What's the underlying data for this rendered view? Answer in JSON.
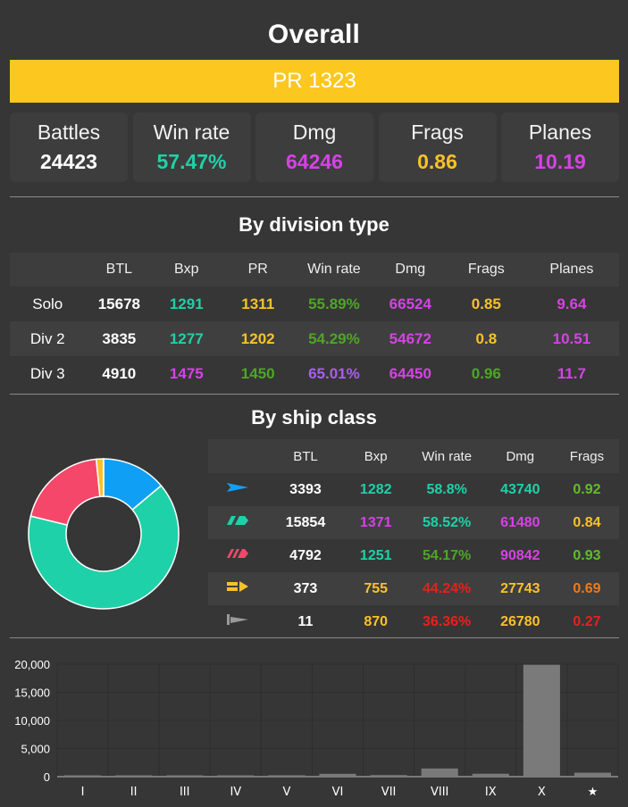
{
  "overall": {
    "title": "Overall",
    "pr_label": "PR 1323",
    "cards": [
      {
        "label": "Battles",
        "value": "24423",
        "color": "#ffffff"
      },
      {
        "label": "Win rate",
        "value": "57.47%",
        "color": "#1fd1a8"
      },
      {
        "label": "Dmg",
        "value": "64246",
        "color": "#d642e6"
      },
      {
        "label": "Frags",
        "value": "0.86",
        "color": "#fbc12a"
      },
      {
        "label": "Planes",
        "value": "10.19",
        "color": "#d642e6"
      }
    ]
  },
  "division": {
    "title": "By division type",
    "headers": [
      "",
      "BTL",
      "Bxp",
      "PR",
      "Win rate",
      "Dmg",
      "Frags",
      "Planes"
    ],
    "rows": [
      {
        "label": "Solo",
        "cells": [
          {
            "v": "15678",
            "c": "white"
          },
          {
            "v": "1291",
            "c": "teal"
          },
          {
            "v": "1311",
            "c": "yellow"
          },
          {
            "v": "55.89%",
            "c": "green"
          },
          {
            "v": "66524",
            "c": "purple"
          },
          {
            "v": "0.85",
            "c": "yellow"
          },
          {
            "v": "9.64",
            "c": "purple"
          }
        ]
      },
      {
        "label": "Div 2",
        "cells": [
          {
            "v": "3835",
            "c": "white"
          },
          {
            "v": "1277",
            "c": "teal"
          },
          {
            "v": "1202",
            "c": "yellow"
          },
          {
            "v": "54.29%",
            "c": "green"
          },
          {
            "v": "54672",
            "c": "purple"
          },
          {
            "v": "0.8",
            "c": "yellow"
          },
          {
            "v": "10.51",
            "c": "purple"
          }
        ]
      },
      {
        "label": "Div 3",
        "cells": [
          {
            "v": "4910",
            "c": "white"
          },
          {
            "v": "1475",
            "c": "purple"
          },
          {
            "v": "1450",
            "c": "green"
          },
          {
            "v": "65.01%",
            "c": "violet"
          },
          {
            "v": "64450",
            "c": "purple"
          },
          {
            "v": "0.96",
            "c": "green"
          },
          {
            "v": "11.7",
            "c": "purple"
          }
        ]
      }
    ]
  },
  "ship_class": {
    "title": "By ship class",
    "headers": [
      "",
      "BTL",
      "Bxp",
      "Win rate",
      "Dmg",
      "Frags"
    ],
    "rows": [
      {
        "icon": "destroyer-icon",
        "icon_color": "#0fa0f5",
        "cells": [
          {
            "v": "3393",
            "c": "white"
          },
          {
            "v": "1282",
            "c": "teal"
          },
          {
            "v": "58.8%",
            "c": "teal"
          },
          {
            "v": "43740",
            "c": "teal"
          },
          {
            "v": "0.92",
            "c": "lgreen"
          }
        ]
      },
      {
        "icon": "cruiser-icon",
        "icon_color": "#1fd1a8",
        "cells": [
          {
            "v": "15854",
            "c": "white"
          },
          {
            "v": "1371",
            "c": "purple"
          },
          {
            "v": "58.52%",
            "c": "teal"
          },
          {
            "v": "61480",
            "c": "purple"
          },
          {
            "v": "0.84",
            "c": "yellow"
          }
        ]
      },
      {
        "icon": "battleship-icon",
        "icon_color": "#f5476a",
        "cells": [
          {
            "v": "4792",
            "c": "white"
          },
          {
            "v": "1251",
            "c": "teal"
          },
          {
            "v": "54.17%",
            "c": "green"
          },
          {
            "v": "90842",
            "c": "purple"
          },
          {
            "v": "0.93",
            "c": "lgreen"
          }
        ]
      },
      {
        "icon": "carrier-icon",
        "icon_color": "#fbc12a",
        "cells": [
          {
            "v": "373",
            "c": "white"
          },
          {
            "v": "755",
            "c": "yellow"
          },
          {
            "v": "44.24%",
            "c": "red"
          },
          {
            "v": "27743",
            "c": "yellow"
          },
          {
            "v": "0.69",
            "c": "orange"
          }
        ]
      },
      {
        "icon": "submarine-icon",
        "icon_color": "#9a9a9a",
        "cells": [
          {
            "v": "11",
            "c": "white"
          },
          {
            "v": "870",
            "c": "yellow"
          },
          {
            "v": "36.36%",
            "c": "red"
          },
          {
            "v": "26780",
            "c": "yellow"
          },
          {
            "v": "0.27",
            "c": "red"
          }
        ]
      }
    ]
  },
  "chart_data": [
    {
      "type": "pie",
      "style": "donut",
      "categories": [
        "Destroyer",
        "Cruiser",
        "Battleship",
        "Carrier",
        "Submarine"
      ],
      "values": [
        3393,
        15854,
        4792,
        373,
        11
      ],
      "colors": [
        "#0fa0f5",
        "#1fd1a8",
        "#f5476a",
        "#fbc12a",
        "#9a9a9a"
      ]
    },
    {
      "type": "bar",
      "categories": [
        "I",
        "II",
        "III",
        "IV",
        "V",
        "VI",
        "VII",
        "VIII",
        "IX",
        "X",
        "★"
      ],
      "values": [
        50,
        20,
        80,
        100,
        250,
        500,
        280,
        1450,
        520,
        19900,
        700
      ],
      "yticks": [
        "0",
        "5,000",
        "10,000",
        "15,000",
        "20,000"
      ],
      "ylim": [
        0,
        20000
      ],
      "bar_color": "#7a7a7a",
      "grid": true
    }
  ]
}
